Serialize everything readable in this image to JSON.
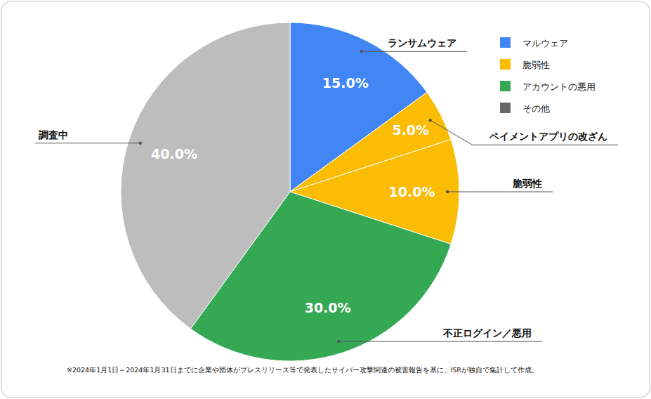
{
  "chart_data": {
    "type": "pie",
    "categories": [
      "ランサムウェア",
      "ペイメントアプリの改ざん",
      "脆弱性",
      "不正ログイン／悪用",
      "調査中"
    ],
    "values": [
      15,
      5,
      10,
      30,
      40
    ],
    "value_labels": [
      "15.0%",
      "5.0%",
      "10.0%",
      "30.0%",
      "40.0%"
    ],
    "colors": [
      "#4285f4",
      "#fbbc04",
      "#fbbc04",
      "#34a853",
      "#bdbdbd"
    ],
    "data_labels": true,
    "legend": "top-right",
    "legend_items": [
      {
        "name": "マルウェア",
        "color": "#4285f4"
      },
      {
        "name": "脆弱性",
        "color": "#fbbc04"
      },
      {
        "name": "アカウントの悪用",
        "color": "#34a853"
      },
      {
        "name": "その他",
        "color": "#666666"
      }
    ],
    "caption": "※2024年1月1日～2024年1月31日までに企業や団体がプレスリリース等で発表したサイバー攻撃関連の被害報告を基に、ISRが独自で集計して作成。"
  }
}
